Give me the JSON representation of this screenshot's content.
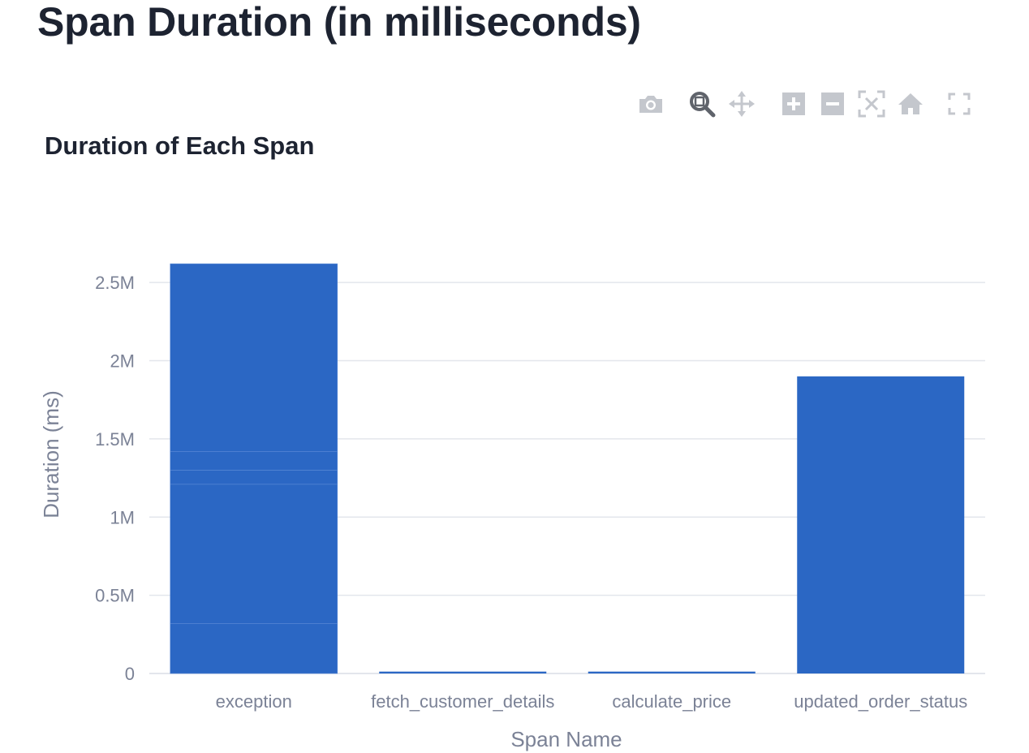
{
  "page": {
    "title": "Span Duration (in milliseconds)"
  },
  "modebar": {
    "buttons": [
      {
        "name": "camera-icon",
        "action": "download-plot"
      },
      {
        "name": "zoom-icon",
        "action": "zoom",
        "active": true
      },
      {
        "name": "pan-icon",
        "action": "pan"
      },
      {
        "name": "zoom-in-icon",
        "action": "zoom-in"
      },
      {
        "name": "zoom-out-icon",
        "action": "zoom-out"
      },
      {
        "name": "autoscale-icon",
        "action": "autoscale"
      },
      {
        "name": "home-icon",
        "action": "reset-axes"
      },
      {
        "name": "fullscreen-icon",
        "action": "fullscreen"
      }
    ]
  },
  "colors": {
    "bar": "#2b67c4",
    "bar_segment_line": "#5b8ad6",
    "grid": "#e3e6ec",
    "axis_text": "#7b8296",
    "title_text": "#1d2331",
    "modebar_icon": "#c4c7cd",
    "modebar_active": "#5f636b"
  },
  "chart_data": {
    "type": "bar",
    "title": "Duration of Each Span",
    "xlabel": "Span Name",
    "ylabel": "Duration (ms)",
    "categories": [
      "exception",
      "fetch_customer_details",
      "calculate_price",
      "updated_order_status"
    ],
    "values": [
      2620000,
      12000,
      12000,
      1900000
    ],
    "stacked_segments": {
      "exception": [
        320000,
        890000,
        90000,
        120000,
        1200000
      ]
    },
    "ylim": [
      0,
      2750000
    ],
    "yticks": [
      0,
      500000,
      1000000,
      1500000,
      2000000,
      2500000
    ],
    "ytick_labels": [
      "0",
      "0.5M",
      "1M",
      "1.5M",
      "2M",
      "2.5M"
    ],
    "grid": true,
    "legend": "none"
  }
}
